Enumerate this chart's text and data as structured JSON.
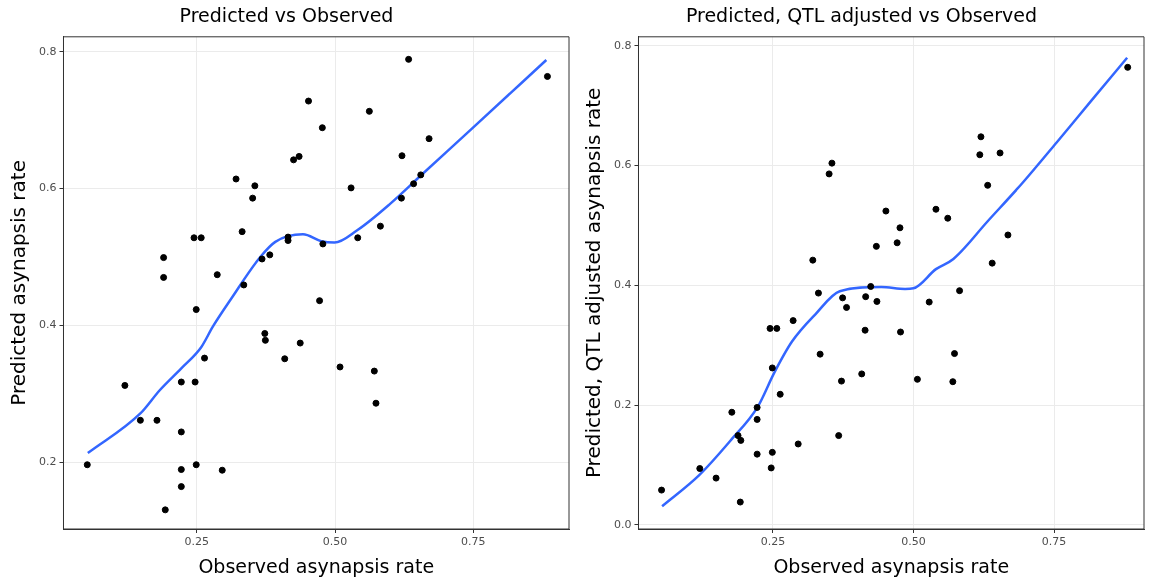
{
  "chart_data": [
    {
      "type": "scatter",
      "title": "Predicted vs Observed",
      "xlabel": "Observed asynapsis rate",
      "ylabel": "Predicted asynapsis rate",
      "xlim": [
        0.009,
        0.923
      ],
      "ylim": [
        0.102,
        0.822
      ],
      "xticks": [
        {
          "value": 0.25,
          "label": "0.25"
        },
        {
          "value": 0.5,
          "label": "0.50"
        },
        {
          "value": 0.75,
          "label": "0.75"
        }
      ],
      "yticks": [
        0.2,
        0.4,
        0.6,
        0.8
      ],
      "grid": true,
      "series": [
        {
          "type": "scatter",
          "color": "#000000",
          "marker": "circle",
          "x": [
            0.052,
            0.12,
            0.148,
            0.178,
            0.19,
            0.19,
            0.193,
            0.222,
            0.222,
            0.222,
            0.222,
            0.245,
            0.247,
            0.249,
            0.249,
            0.258,
            0.264,
            0.287,
            0.296,
            0.321,
            0.332,
            0.335,
            0.351,
            0.355,
            0.368,
            0.373,
            0.374,
            0.382,
            0.409,
            0.415,
            0.415,
            0.425,
            0.435,
            0.437,
            0.452,
            0.472,
            0.477,
            0.478,
            0.509,
            0.529,
            0.541,
            0.562,
            0.571,
            0.574,
            0.582,
            0.62,
            0.621,
            0.633,
            0.642,
            0.655,
            0.67,
            0.884
          ],
          "values": [
            0.196,
            0.312,
            0.261,
            0.261,
            0.47,
            0.499,
            0.13,
            0.317,
            0.244,
            0.189,
            0.164,
            0.528,
            0.317,
            0.423,
            0.196,
            0.528,
            0.352,
            0.474,
            0.188,
            0.614,
            0.537,
            0.459,
            0.586,
            0.604,
            0.497,
            0.388,
            0.378,
            0.503,
            0.351,
            0.524,
            0.529,
            0.642,
            0.647,
            0.374,
            0.728,
            0.436,
            0.689,
            0.519,
            0.339,
            0.601,
            0.528,
            0.713,
            0.333,
            0.286,
            0.545,
            0.586,
            0.648,
            0.789,
            0.607,
            0.62,
            0.673,
            0.764
          ]
        },
        {
          "type": "line",
          "color": "#3366ff",
          "marker": "none",
          "x": [
            0.053,
            0.148,
            0.183,
            0.222,
            0.258,
            0.279,
            0.314,
            0.362,
            0.392,
            0.442,
            0.475,
            0.499,
            0.54,
            0.6,
            0.659,
            0.748,
            0.882
          ],
          "values": [
            0.213,
            0.271,
            0.305,
            0.337,
            0.368,
            0.398,
            0.441,
            0.497,
            0.522,
            0.533,
            0.523,
            0.521,
            0.539,
            0.578,
            0.622,
            0.688,
            0.788
          ]
        }
      ]
    },
    {
      "type": "scatter",
      "title": "Predicted, QTL adjusted vs Observed",
      "xlabel": "Observed asynapsis rate",
      "ylabel": "Predicted, QTL adjusted asynapsis rate",
      "xlim": [
        0.011,
        0.91
      ],
      "ylim": [
        -0.007,
        0.815
      ],
      "xticks": [
        {
          "value": 0.25,
          "label": "0.25"
        },
        {
          "value": 0.5,
          "label": "0.50"
        },
        {
          "value": 0.75,
          "label": "0.75"
        }
      ],
      "yticks": [
        {
          "value": 0,
          "label": "0.0"
        },
        0.2,
        0.4,
        0.6,
        0.8
      ],
      "grid": true,
      "series": [
        {
          "type": "scatter",
          "color": "#000000",
          "marker": "circle",
          "x": [
            0.052,
            0.12,
            0.149,
            0.177,
            0.188,
            0.193,
            0.192,
            0.222,
            0.222,
            0.222,
            0.245,
            0.257,
            0.249,
            0.249,
            0.247,
            0.263,
            0.286,
            0.295,
            0.331,
            0.334,
            0.367,
            0.372,
            0.374,
            0.381,
            0.408,
            0.414,
            0.415,
            0.424,
            0.435,
            0.477,
            0.507,
            0.528,
            0.57,
            0.573,
            0.582,
            0.321,
            0.35,
            0.355,
            0.434,
            0.451,
            0.471,
            0.476,
            0.54,
            0.561,
            0.62,
            0.618,
            0.654,
            0.632,
            0.668,
            0.64,
            0.881
          ],
          "values": [
            0.058,
            0.094,
            0.078,
            0.188,
            0.149,
            0.141,
            0.038,
            0.196,
            0.176,
            0.118,
            0.328,
            0.328,
            0.262,
            0.121,
            0.095,
            0.218,
            0.341,
            0.135,
            0.387,
            0.285,
            0.149,
            0.24,
            0.379,
            0.363,
            0.252,
            0.325,
            0.381,
            0.398,
            0.373,
            0.322,
            0.243,
            0.372,
            0.239,
            0.286,
            0.391,
            0.442,
            0.586,
            0.604,
            0.465,
            0.524,
            0.471,
            0.496,
            0.527,
            0.512,
            0.648,
            0.618,
            0.621,
            0.567,
            0.484,
            0.437,
            0.764
          ]
        },
        {
          "type": "line",
          "color": "#3366ff",
          "marker": "none",
          "x": [
            0.053,
            0.119,
            0.174,
            0.223,
            0.253,
            0.284,
            0.326,
            0.369,
            0.443,
            0.485,
            0.5,
            0.54,
            0.571,
            0.632,
            0.693,
            0.755,
            0.816,
            0.88
          ],
          "values": [
            0.031,
            0.083,
            0.14,
            0.197,
            0.255,
            0.306,
            0.352,
            0.39,
            0.397,
            0.394,
            0.395,
            0.427,
            0.444,
            0.507,
            0.57,
            0.639,
            0.708,
            0.78
          ]
        }
      ]
    }
  ]
}
